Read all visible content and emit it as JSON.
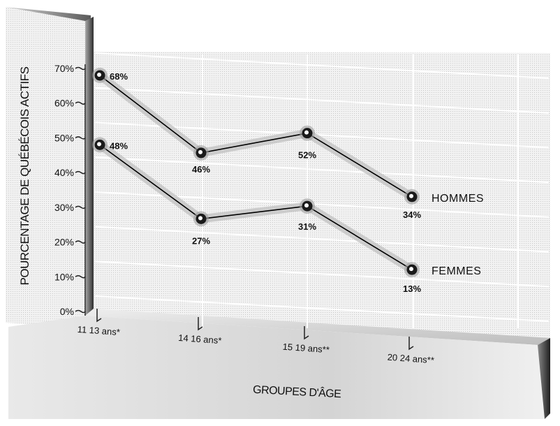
{
  "chart_data": {
    "type": "line",
    "ylabel": "POURCENTAGE DE QUÉBÉCOIS ACTIFS",
    "xlabel": "GROUPES D'ÂGE",
    "categories": [
      "11 13 ans*",
      "14 16 ans*",
      "15 19 ans**",
      "20 24 ans**"
    ],
    "y_ticks": [
      "0%",
      "10%",
      "20%",
      "30%",
      "40%",
      "50%",
      "60%",
      "70%"
    ],
    "ylim": [
      0,
      70
    ],
    "grid": true,
    "legend": "inline-right",
    "series": [
      {
        "name": "HOMMES",
        "values": [
          68,
          46,
          52,
          34
        ],
        "labels": [
          "68%",
          "46%",
          "52%",
          "34%"
        ]
      },
      {
        "name": "FEMMES",
        "values": [
          48,
          27,
          31,
          13
        ],
        "labels": [
          "48%",
          "27%",
          "31%",
          "13%"
        ]
      }
    ],
    "colors": {
      "wall": "#e6e6e6",
      "floor": "#d8d8d8",
      "frame": "#555555",
      "line": "#000000",
      "halo": "#bdbdbd",
      "marker_outer": "#1a1a1a",
      "marker_inner": "#ffffff"
    }
  }
}
